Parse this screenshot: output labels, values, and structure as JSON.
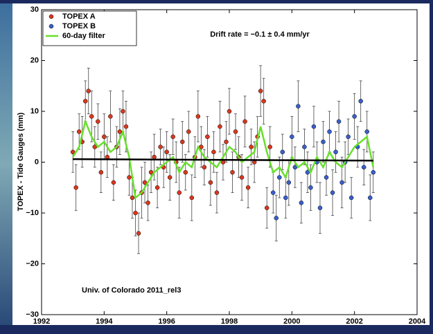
{
  "chart_data": {
    "type": "scatter",
    "ylabel": "TOPEX - Tide Gauges (mm)",
    "annotations": [
      "Drift rate = −0.1 ± 0.4 mm/yr",
      "Univ. of Colorado 2011_rel3"
    ],
    "xlim": [
      1992,
      2004
    ],
    "xticks": [
      1992,
      1994,
      1996,
      1998,
      2000,
      2002,
      2004
    ],
    "ylim": [
      -30,
      30
    ],
    "yticks": [
      {
        "value": -30,
        "label": "−30"
      },
      {
        "value": -20,
        "label": "−20"
      },
      {
        "value": -10,
        "label": "−10"
      },
      0,
      10,
      20,
      30
    ],
    "series": [
      {
        "name": "TOPEX A",
        "color": "#d9381e",
        "x": [
          1993.0,
          1993.1,
          1993.2,
          1993.3,
          1993.4,
          1993.5,
          1993.6,
          1993.7,
          1993.8,
          1993.9,
          1994.0,
          1994.1,
          1994.2,
          1994.3,
          1994.4,
          1994.5,
          1994.6,
          1994.7,
          1994.8,
          1994.9,
          1995.0,
          1995.1,
          1995.2,
          1995.3,
          1995.4,
          1995.5,
          1995.6,
          1995.7,
          1995.8,
          1995.9,
          1996.0,
          1996.1,
          1996.2,
          1996.3,
          1996.4,
          1996.5,
          1996.6,
          1996.7,
          1996.8,
          1996.9,
          1997.0,
          1997.1,
          1997.2,
          1997.3,
          1997.4,
          1997.5,
          1997.6,
          1997.7,
          1997.8,
          1997.9,
          1998.0,
          1998.1,
          1998.2,
          1998.3,
          1998.4,
          1998.5,
          1998.6,
          1998.7,
          1998.8,
          1998.9,
          1999.0,
          1999.1,
          1999.2,
          1999.3
        ],
        "values": [
          2,
          -5,
          6,
          4,
          12,
          14,
          9,
          3,
          8,
          -2,
          5,
          1,
          9,
          -4,
          3,
          6,
          10,
          7,
          -3,
          -7,
          -10,
          -14,
          -6,
          -4,
          -8,
          -2,
          1,
          -5,
          3,
          -1,
          2,
          -3,
          5,
          0,
          -6,
          4,
          -2,
          6,
          -7,
          1,
          9,
          3,
          -1,
          5,
          -4,
          2,
          -6,
          7,
          0,
          4,
          10,
          -2,
          6,
          1,
          -3,
          8,
          -5,
          3,
          0,
          5,
          14,
          12,
          -9,
          3
        ],
        "errors": [
          4,
          4.5,
          3.5,
          5,
          4,
          4.5,
          5,
          4,
          3.5,
          4,
          4.5,
          4,
          5,
          3.5,
          4,
          4.5,
          4,
          5,
          3.5,
          4,
          4.5,
          4,
          5,
          4,
          3.5,
          4,
          4.5,
          4,
          3.5,
          4,
          4,
          4.5,
          3.5,
          4,
          5,
          4,
          3.5,
          4,
          4.5,
          4,
          5,
          4,
          3.5,
          4,
          4.5,
          4,
          4,
          5,
          3.5,
          4,
          4.5,
          4,
          3.5,
          4,
          4.5,
          5,
          4,
          3.5,
          4,
          4,
          5,
          4.5,
          4,
          4
        ]
      },
      {
        "name": "TOPEX B",
        "color": "#3a5fcd",
        "x": [
          1999.4,
          1999.5,
          1999.6,
          1999.7,
          1999.8,
          1999.9,
          2000.0,
          2000.1,
          2000.2,
          2000.3,
          2000.4,
          2000.5,
          2000.6,
          2000.7,
          2000.8,
          2000.9,
          2001.0,
          2001.1,
          2001.2,
          2001.3,
          2001.4,
          2001.5,
          2001.6,
          2001.7,
          2001.8,
          2001.9,
          2002.0,
          2002.1,
          2002.2,
          2002.3,
          2002.4,
          2002.5,
          2002.6
        ],
        "values": [
          -6,
          -11,
          -3,
          2,
          -7,
          -4,
          5,
          -1,
          11,
          -8,
          3,
          -2,
          -5,
          7,
          0,
          -9,
          4,
          -3,
          6,
          -6,
          2,
          8,
          -4,
          0,
          5,
          -7,
          9,
          3,
          12,
          -1,
          6,
          -7,
          -2
        ],
        "errors": [
          4,
          4.5,
          4,
          3.5,
          4,
          4.5,
          4,
          4,
          5,
          4,
          3.5,
          4,
          4.5,
          4,
          4,
          5,
          4,
          3.5,
          4,
          4.5,
          4,
          4,
          5,
          4,
          3.5,
          4,
          4.5,
          4,
          4,
          3.5,
          4,
          4.5,
          4
        ]
      }
    ],
    "filter": {
      "name": "60-day filter",
      "color": "#66e02a",
      "x": [
        1993.0,
        1993.2,
        1993.4,
        1993.6,
        1993.8,
        1994.0,
        1994.2,
        1994.4,
        1994.6,
        1994.8,
        1995.0,
        1995.2,
        1995.4,
        1995.6,
        1995.8,
        1996.0,
        1996.2,
        1996.4,
        1996.6,
        1996.8,
        1997.0,
        1997.2,
        1997.4,
        1997.6,
        1997.8,
        1998.0,
        1998.2,
        1998.4,
        1998.6,
        1998.8,
        1999.0,
        1999.2,
        1999.4,
        1999.6,
        1999.8,
        2000.0,
        2000.2,
        2000.4,
        2000.6,
        2000.8,
        2001.0,
        2001.2,
        2001.4,
        2001.6,
        2001.8,
        2002.0,
        2002.2,
        2002.4,
        2002.6
      ],
      "values": [
        1,
        3,
        8,
        5,
        3,
        4,
        2,
        3,
        6,
        1,
        -7,
        -6,
        -4,
        -2,
        -1,
        0,
        1,
        -2,
        0,
        -1,
        3,
        1,
        0,
        -1,
        1,
        3,
        2,
        0,
        1,
        2,
        7,
        2,
        -2,
        -1,
        -3,
        1,
        -1,
        0,
        -2,
        1,
        -1,
        2,
        0,
        -1,
        1,
        3,
        4,
        5,
        -1
      ]
    },
    "trend": {
      "color": "#000000",
      "x": [
        1993.0,
        2002.6
      ],
      "values": [
        0.6,
        0.3
      ]
    }
  }
}
